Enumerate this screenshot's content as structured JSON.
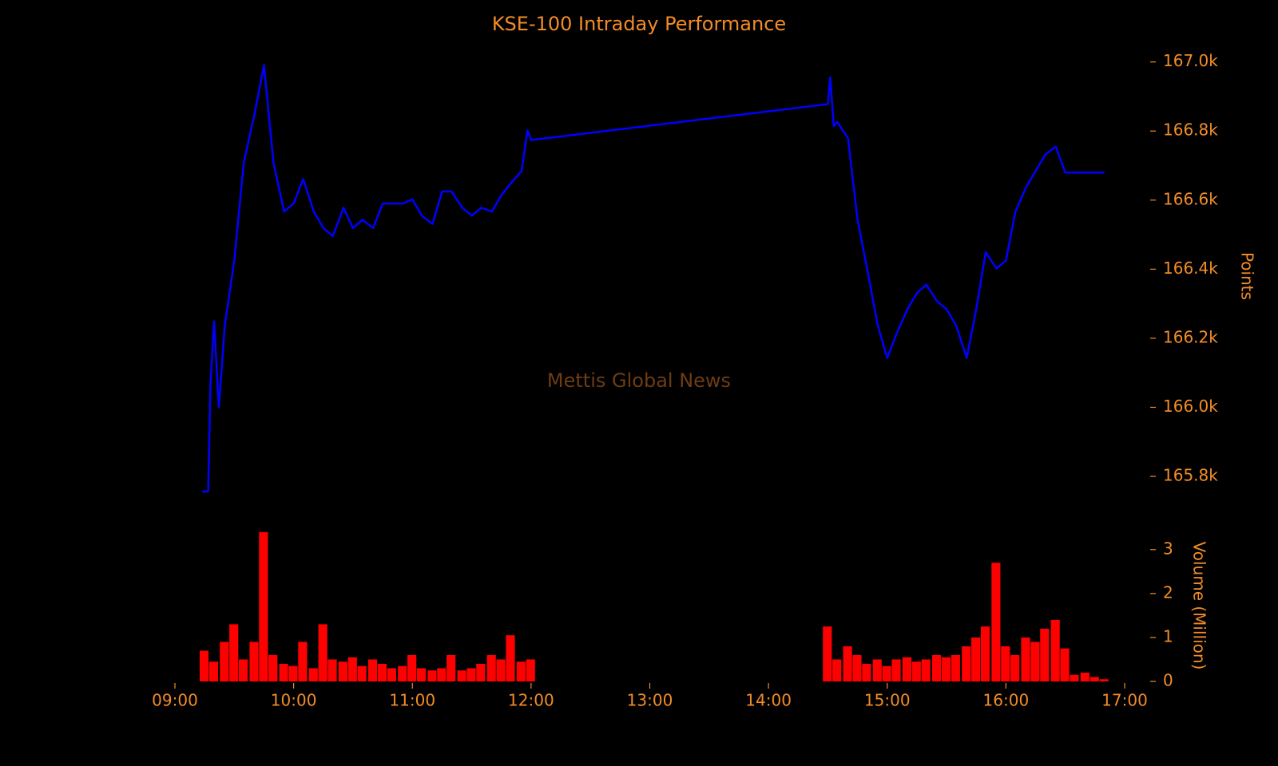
{
  "chart_data": [
    {
      "type": "line",
      "title": "KSE-100 Intraday Performance",
      "annotation": "Mettis Global News",
      "ylabel": "Points",
      "yaxis_position": "right",
      "color": "#0000ff",
      "xlim": [
        9,
        17
      ],
      "x": [
        9.23,
        9.28,
        9.3,
        9.33,
        9.37,
        9.42,
        9.5,
        9.58,
        9.67,
        9.75,
        9.83,
        9.92,
        10.0,
        10.08,
        10.17,
        10.25,
        10.33,
        10.42,
        10.5,
        10.58,
        10.67,
        10.75,
        10.83,
        10.92,
        11.0,
        11.08,
        11.17,
        11.25,
        11.33,
        11.42,
        11.5,
        11.58,
        11.67,
        11.75,
        11.83,
        11.92,
        11.97,
        12.0,
        14.5,
        14.52,
        14.55,
        14.58,
        14.67,
        14.75,
        14.83,
        14.92,
        15.0,
        15.08,
        15.17,
        15.25,
        15.33,
        15.42,
        15.5,
        15.58,
        15.67,
        15.75,
        15.83,
        15.92,
        16.0,
        16.08,
        16.17,
        16.25,
        16.33,
        16.42,
        16.5,
        16.83
      ],
      "values": [
        165756,
        165756,
        166072,
        166249,
        166001,
        166237,
        166425,
        166708,
        166849,
        166991,
        166708,
        166567,
        166590,
        166661,
        166567,
        166519,
        166496,
        166578,
        166519,
        166543,
        166519,
        166590,
        166590,
        166590,
        166602,
        166555,
        166531,
        166625,
        166625,
        166578,
        166555,
        166578,
        166567,
        166614,
        166649,
        166684,
        166802,
        166774,
        166878,
        166955,
        166814,
        166826,
        166779,
        166543,
        166402,
        166237,
        166143,
        166214,
        166284,
        166331,
        166355,
        166307,
        166284,
        166237,
        166143,
        166284,
        166449,
        166402,
        166425,
        166567,
        166637,
        166684,
        166731,
        166755,
        166680,
        166680
      ],
      "ylim": [
        165740,
        167020
      ],
      "yticks": [
        {
          "value": 165800,
          "label": "165.8k"
        },
        {
          "value": 166000,
          "label": "166.0k"
        },
        {
          "value": 166200,
          "label": "166.2k"
        },
        {
          "value": 166400,
          "label": "166.4k"
        },
        {
          "value": 166600,
          "label": "166.6k"
        },
        {
          "value": 166800,
          "label": "166.8k"
        },
        {
          "value": 167000,
          "label": "167.0k"
        }
      ]
    },
    {
      "type": "bar",
      "ylabel": "Volume (Million)",
      "yaxis_position": "right",
      "color": "#ff0000",
      "xlim": [
        9,
        17
      ],
      "xticks": [
        {
          "value": 9,
          "label": "09:00"
        },
        {
          "value": 10,
          "label": "10:00"
        },
        {
          "value": 11,
          "label": "11:00"
        },
        {
          "value": 12,
          "label": "12:00"
        },
        {
          "value": 13,
          "label": "13:00"
        },
        {
          "value": 14,
          "label": "14:00"
        },
        {
          "value": 15,
          "label": "15:00"
        },
        {
          "value": 16,
          "label": "16:00"
        },
        {
          "value": 17,
          "label": "17:00"
        }
      ],
      "x": [
        9.25,
        9.33,
        9.42,
        9.5,
        9.58,
        9.67,
        9.75,
        9.83,
        9.92,
        10.0,
        10.08,
        10.17,
        10.25,
        10.33,
        10.42,
        10.5,
        10.58,
        10.67,
        10.75,
        10.83,
        10.92,
        11.0,
        11.08,
        11.17,
        11.25,
        11.33,
        11.42,
        11.5,
        11.58,
        11.67,
        11.75,
        11.83,
        11.92,
        12.0,
        14.5,
        14.58,
        14.67,
        14.75,
        14.83,
        14.92,
        15.0,
        15.08,
        15.17,
        15.25,
        15.33,
        15.42,
        15.5,
        15.58,
        15.67,
        15.75,
        15.83,
        15.92,
        16.0,
        16.08,
        16.17,
        16.25,
        16.33,
        16.42,
        16.5,
        16.58,
        16.67,
        16.75,
        16.83
      ],
      "values": [
        0.7,
        0.45,
        0.9,
        1.3,
        0.5,
        0.9,
        3.4,
        0.6,
        0.4,
        0.35,
        0.9,
        0.3,
        1.3,
        0.5,
        0.45,
        0.55,
        0.35,
        0.5,
        0.4,
        0.3,
        0.35,
        0.6,
        0.3,
        0.25,
        0.3,
        0.6,
        0.25,
        0.3,
        0.4,
        0.6,
        0.5,
        1.05,
        0.45,
        0.5,
        1.25,
        0.5,
        0.8,
        0.6,
        0.4,
        0.5,
        0.35,
        0.5,
        0.55,
        0.45,
        0.5,
        0.6,
        0.55,
        0.6,
        0.8,
        1.0,
        1.25,
        2.7,
        0.8,
        0.6,
        1.0,
        0.9,
        1.2,
        1.4,
        0.75,
        0.15,
        0.2,
        0.1,
        0.05
      ],
      "ylim": [
        0,
        3.45
      ],
      "yticks": [
        0,
        1,
        2,
        3
      ]
    }
  ]
}
